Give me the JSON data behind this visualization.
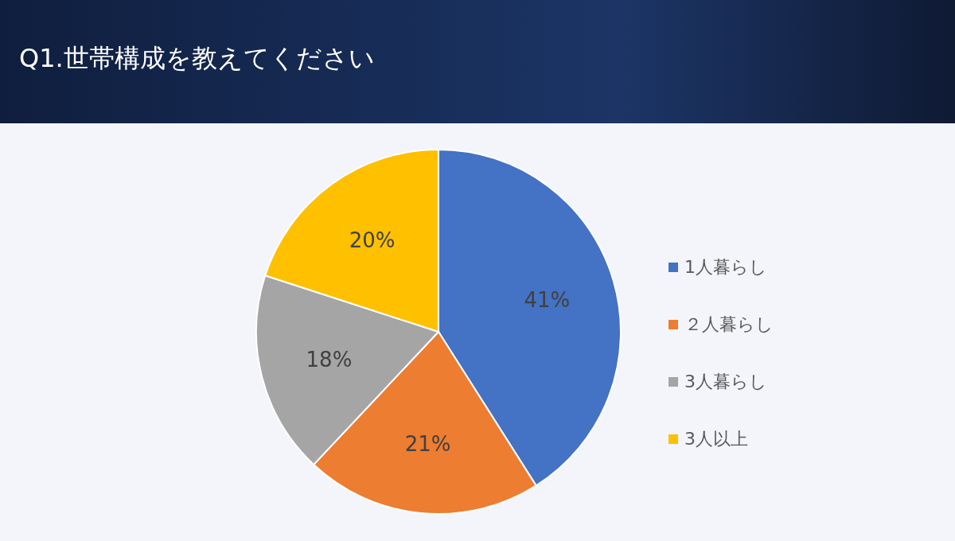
{
  "chart_data": {
    "type": "pie",
    "title": "Q1.世帯構成を教えてください",
    "categories": [
      "1人暮らし",
      "２人暮らし",
      "3人暮らし",
      "3人以上"
    ],
    "values": [
      41,
      21,
      18,
      20
    ],
    "colors": [
      "#4472c4",
      "#ed7d31",
      "#a5a5a5",
      "#ffc000"
    ],
    "value_labels": [
      "41%",
      "21%",
      "18%",
      "20%"
    ],
    "legend": "right"
  }
}
